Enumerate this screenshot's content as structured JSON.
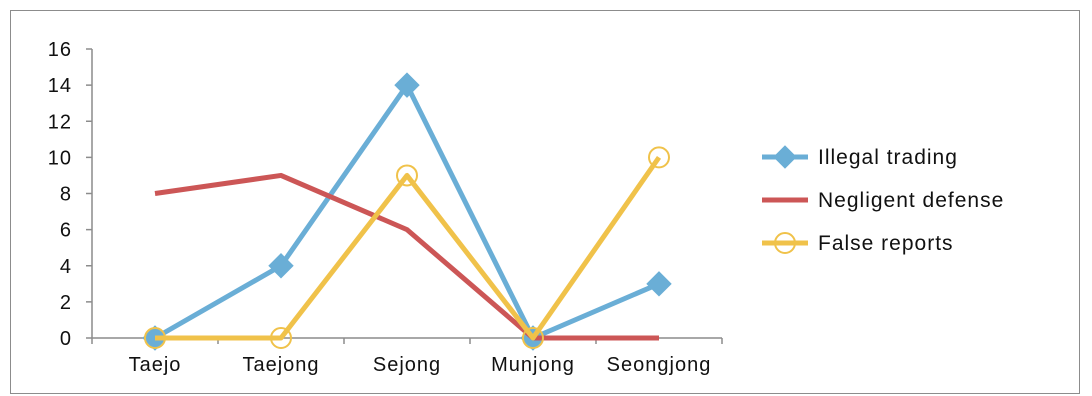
{
  "chart_data": {
    "type": "line",
    "title": "",
    "xlabel": "",
    "ylabel": "",
    "categories": [
      "Taejo",
      "Taejong",
      "Sejong",
      "Munjong",
      "Seongjong"
    ],
    "ylim": [
      0,
      16
    ],
    "yticks": [
      "0",
      "2",
      "4",
      "6",
      "8",
      "10",
      "12",
      "14",
      "16"
    ],
    "grid": false,
    "legend_position": "right",
    "series": [
      {
        "name": "Illegal trading",
        "values": [
          0,
          4,
          14,
          0,
          3
        ],
        "color": "#6aaed6",
        "marker": "diamond"
      },
      {
        "name": "Negligent defense",
        "values": [
          8,
          9,
          6,
          0,
          0
        ],
        "color": "#cc5656",
        "marker": "none"
      },
      {
        "name": "False reports",
        "values": [
          0,
          0,
          9,
          0,
          10
        ],
        "color": "#f0c24a",
        "marker": "circle"
      }
    ]
  }
}
